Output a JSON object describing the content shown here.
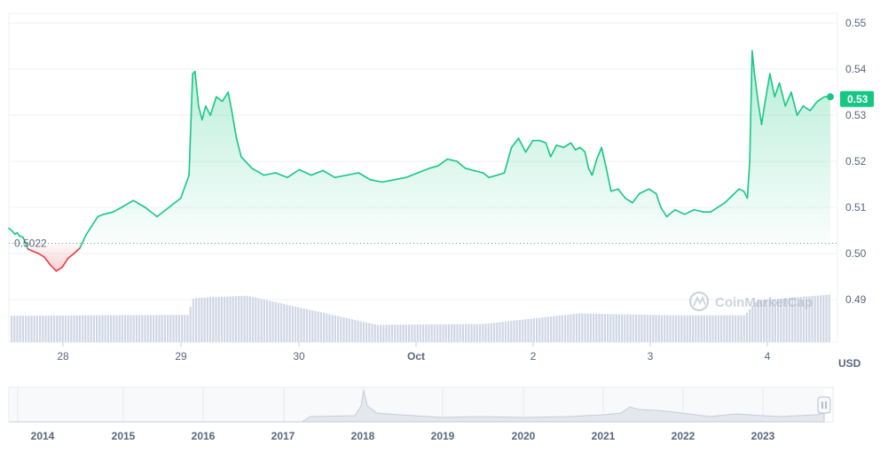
{
  "chart_data": {
    "type": "area",
    "currency_label": "USD",
    "y_ticks": [
      "0.55",
      "0.54",
      "0.53",
      "0.52",
      "0.51",
      "0.50",
      "0.49"
    ],
    "ylim": [
      0.486,
      0.553
    ],
    "x_ticks": [
      "28",
      "29",
      "30",
      "Oct",
      "2",
      "3",
      "4"
    ],
    "open_price": 0.5022,
    "open_price_label": "0.5022",
    "current_price_label": "0.53",
    "price_series": [
      [
        0.0,
        0.5055
      ],
      [
        0.03,
        0.5048
      ],
      [
        0.05,
        0.5042
      ],
      [
        0.07,
        0.5045
      ],
      [
        0.09,
        0.5038
      ],
      [
        0.12,
        0.5035
      ],
      [
        0.16,
        0.501
      ],
      [
        0.2,
        0.5005
      ],
      [
        0.25,
        0.5
      ],
      [
        0.3,
        0.4992
      ],
      [
        0.35,
        0.4975
      ],
      [
        0.4,
        0.4962
      ],
      [
        0.45,
        0.497
      ],
      [
        0.5,
        0.499
      ],
      [
        0.55,
        0.5
      ],
      [
        0.6,
        0.5012
      ],
      [
        0.65,
        0.504
      ],
      [
        0.7,
        0.506
      ],
      [
        0.75,
        0.508
      ],
      [
        0.8,
        0.5085
      ],
      [
        0.88,
        0.509
      ],
      [
        0.95,
        0.51
      ],
      [
        1.05,
        0.5115
      ],
      [
        1.15,
        0.51
      ],
      [
        1.25,
        0.508
      ],
      [
        1.35,
        0.51
      ],
      [
        1.45,
        0.512
      ],
      [
        1.52,
        0.517
      ],
      [
        1.55,
        0.539
      ],
      [
        1.57,
        0.5395
      ],
      [
        1.6,
        0.532
      ],
      [
        1.63,
        0.529
      ],
      [
        1.66,
        0.532
      ],
      [
        1.7,
        0.53
      ],
      [
        1.75,
        0.534
      ],
      [
        1.8,
        0.533
      ],
      [
        1.85,
        0.535
      ],
      [
        1.88,
        0.531
      ],
      [
        1.92,
        0.525
      ],
      [
        1.96,
        0.521
      ],
      [
        2.05,
        0.5185
      ],
      [
        2.15,
        0.517
      ],
      [
        2.25,
        0.5175
      ],
      [
        2.35,
        0.5165
      ],
      [
        2.45,
        0.5182
      ],
      [
        2.55,
        0.517
      ],
      [
        2.65,
        0.518
      ],
      [
        2.75,
        0.5165
      ],
      [
        2.85,
        0.517
      ],
      [
        2.95,
        0.5175
      ],
      [
        3.05,
        0.516
      ],
      [
        3.15,
        0.5155
      ],
      [
        3.25,
        0.516
      ],
      [
        3.35,
        0.5165
      ],
      [
        3.45,
        0.5175
      ],
      [
        3.55,
        0.5185
      ],
      [
        3.62,
        0.519
      ],
      [
        3.7,
        0.5205
      ],
      [
        3.78,
        0.52
      ],
      [
        3.85,
        0.5185
      ],
      [
        3.92,
        0.518
      ],
      [
        4.0,
        0.5175
      ],
      [
        4.05,
        0.5165
      ],
      [
        4.12,
        0.517
      ],
      [
        4.18,
        0.5175
      ],
      [
        4.24,
        0.523
      ],
      [
        4.3,
        0.525
      ],
      [
        4.36,
        0.522
      ],
      [
        4.42,
        0.5245
      ],
      [
        4.48,
        0.5245
      ],
      [
        4.53,
        0.524
      ],
      [
        4.57,
        0.521
      ],
      [
        4.62,
        0.5235
      ],
      [
        4.68,
        0.523
      ],
      [
        4.74,
        0.524
      ],
      [
        4.78,
        0.5225
      ],
      [
        4.82,
        0.523
      ],
      [
        4.86,
        0.522
      ],
      [
        4.89,
        0.5185
      ],
      [
        4.92,
        0.517
      ],
      [
        4.96,
        0.5205
      ],
      [
        5.0,
        0.523
      ],
      [
        5.04,
        0.5185
      ],
      [
        5.08,
        0.5135
      ],
      [
        5.14,
        0.514
      ],
      [
        5.2,
        0.512
      ],
      [
        5.26,
        0.511
      ],
      [
        5.32,
        0.513
      ],
      [
        5.4,
        0.514
      ],
      [
        5.46,
        0.513
      ],
      [
        5.5,
        0.51
      ],
      [
        5.55,
        0.508
      ],
      [
        5.62,
        0.5095
      ],
      [
        5.7,
        0.5085
      ],
      [
        5.78,
        0.5095
      ],
      [
        5.86,
        0.509
      ],
      [
        5.92,
        0.509
      ],
      [
        5.98,
        0.51
      ],
      [
        6.04,
        0.511
      ],
      [
        6.1,
        0.5125
      ],
      [
        6.16,
        0.514
      ],
      [
        6.2,
        0.5135
      ],
      [
        6.23,
        0.512
      ],
      [
        6.25,
        0.52
      ],
      [
        6.27,
        0.544
      ],
      [
        6.29,
        0.539
      ],
      [
        6.32,
        0.533
      ],
      [
        6.35,
        0.528
      ],
      [
        6.38,
        0.533
      ],
      [
        6.42,
        0.539
      ],
      [
        6.46,
        0.534
      ],
      [
        6.5,
        0.537
      ],
      [
        6.55,
        0.532
      ],
      [
        6.6,
        0.535
      ],
      [
        6.65,
        0.53
      ],
      [
        6.7,
        0.532
      ],
      [
        6.76,
        0.531
      ],
      [
        6.82,
        0.533
      ],
      [
        6.88,
        0.534
      ],
      [
        6.93,
        0.534
      ]
    ],
    "volume_bars": [
      [
        0.0,
        0.55
      ],
      [
        1.5,
        0.57
      ],
      [
        1.55,
        0.92
      ],
      [
        2.0,
        0.97
      ],
      [
        3.1,
        0.36
      ],
      [
        4.0,
        0.38
      ],
      [
        4.8,
        0.6
      ],
      [
        5.6,
        0.56
      ],
      [
        6.2,
        0.56
      ],
      [
        6.3,
        0.87
      ],
      [
        6.95,
        1.0
      ]
    ],
    "navigator_years": [
      "2014",
      "2015",
      "2016",
      "2017",
      "2018",
      "2019",
      "2020",
      "2021",
      "2022",
      "2023"
    ],
    "colors": {
      "up_line": "#16c784",
      "down_line": "#ea3943",
      "area_fill": "#16c784",
      "volume": "#cfd6e4",
      "grid": "#eff2f5",
      "label_badge": "#16c784"
    },
    "watermark": "CoinMarketCap",
    "navigator_handle_icon": "pause-bars-icon",
    "watermark_icon": "coinmarketcap-logo-icon"
  }
}
